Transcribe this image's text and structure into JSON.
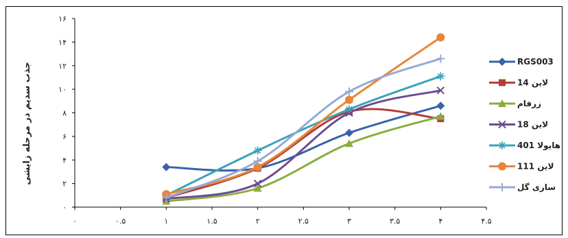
{
  "chart_data": {
    "type": "line",
    "ylabel": "جذب سدیم در مرحله زایشی",
    "xlim": [
      0,
      4.5
    ],
    "ylim": [
      0,
      16
    ],
    "x_ticks": [
      "۰",
      "۰.۵",
      "۱",
      "۱.۵",
      "۲",
      "۲.۵",
      "۳",
      "۳.۵",
      "۴",
      "۴.۵"
    ],
    "y_ticks": [
      "۰",
      "۲",
      "۴",
      "۶",
      "۸",
      "۱۰",
      "۱۲",
      "۱۴",
      "۱۶"
    ],
    "x": [
      1,
      2,
      3,
      4
    ],
    "legend_position": "right",
    "grid": false,
    "series": [
      {
        "name": "RGS003",
        "values": [
          3.4,
          3.3,
          6.3,
          8.6
        ],
        "color": "#3a62a8",
        "marker": "diamond"
      },
      {
        "name": "لاین 14",
        "values": [
          0.8,
          3.3,
          8.1,
          7.5
        ],
        "color": "#b0403a",
        "marker": "square"
      },
      {
        "name": "زرفام",
        "values": [
          0.5,
          1.6,
          5.4,
          7.7
        ],
        "color": "#8aad3e",
        "marker": "triangle"
      },
      {
        "name": "لاین 18",
        "values": [
          0.7,
          2.0,
          8.0,
          9.9
        ],
        "color": "#6b4b91",
        "marker": "x"
      },
      {
        "name": "هایولا 401",
        "values": [
          1.0,
          4.8,
          8.3,
          11.1
        ],
        "color": "#3aa3b8",
        "marker": "asterisk"
      },
      {
        "name": "لاین 111",
        "values": [
          1.1,
          3.4,
          9.1,
          14.4
        ],
        "color": "#e8853a",
        "marker": "circle"
      },
      {
        "name": "ساری گل",
        "values": [
          0.8,
          3.9,
          9.8,
          12.6
        ],
        "color": "#94aad4",
        "marker": "plus"
      }
    ]
  }
}
